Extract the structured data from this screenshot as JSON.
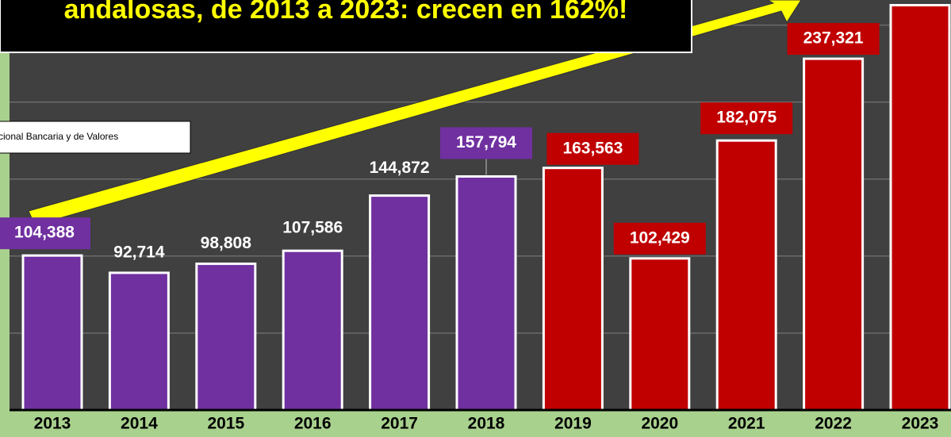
{
  "chart_data": {
    "type": "bar",
    "title": "andalosas, de 2013 a 2023: crecen en 162%!",
    "source": "cional Bancaria y de Valores",
    "categories": [
      "2013",
      "2014",
      "2015",
      "2016",
      "2017",
      "2018",
      "2019",
      "2020",
      "2021",
      "2022",
      "2023"
    ],
    "values": [
      104388,
      92714,
      98808,
      107586,
      144872,
      157794,
      163563,
      102429,
      182075,
      237321,
      273500
    ],
    "value_labels": [
      "104,388",
      "92,714",
      "98,808",
      "107,586",
      "144,872",
      "157,794",
      "163,563",
      "102,429",
      "182,075",
      "237,321",
      null
    ],
    "colors": [
      "#7030a0",
      "#7030a0",
      "#7030a0",
      "#7030a0",
      "#7030a0",
      "#7030a0",
      "#c00000",
      "#c00000",
      "#c00000",
      "#c00000",
      "#c00000"
    ],
    "ylim": [
      0,
      277000
    ],
    "yticks": [
      52000,
      104000,
      156000,
      208000,
      260000
    ],
    "grid": true
  }
}
